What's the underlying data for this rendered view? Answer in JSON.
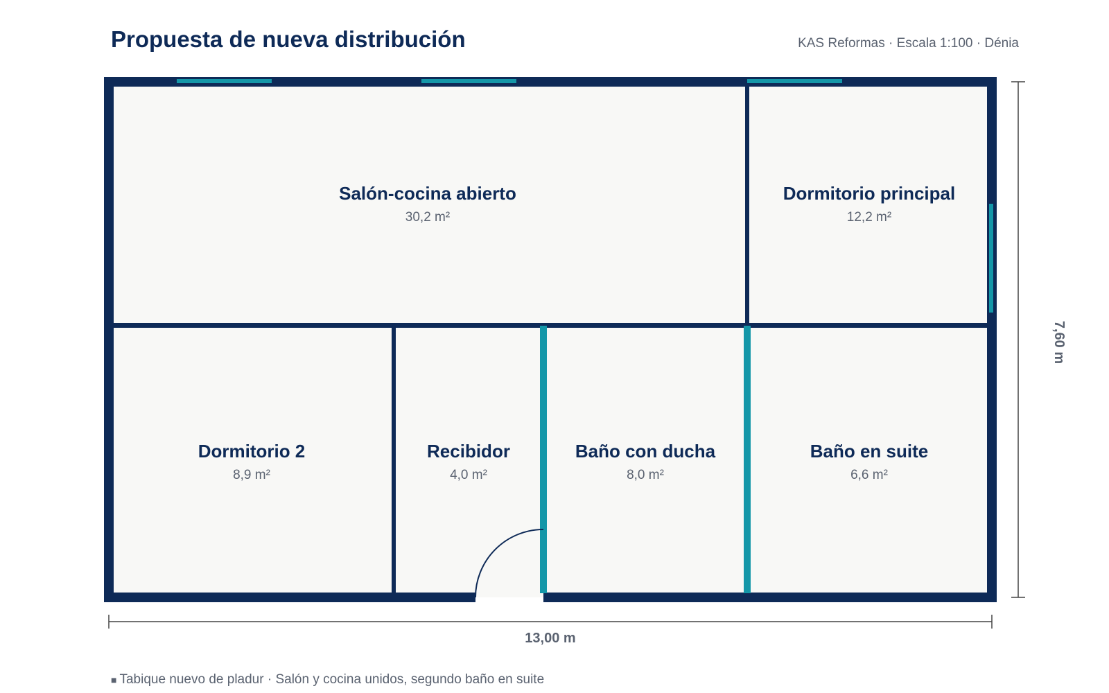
{
  "header": {
    "title": "Propuesta de nueva distribución",
    "subtitle": "KAS Reformas · Escala 1:100 · Dénia"
  },
  "rooms": [
    {
      "name": "Salón-cocina abierto",
      "area": "30,2 m²"
    },
    {
      "name": "Dormitorio principal",
      "area": "12,2 m²"
    },
    {
      "name": "Dormitorio 2",
      "area": "8,9 m²"
    },
    {
      "name": "Recibidor",
      "area": "4,0 m²"
    },
    {
      "name": "Baño con ducha",
      "area": "8,0 m²"
    },
    {
      "name": "Baño en suite",
      "area": "6,6 m²"
    }
  ],
  "dimensions": {
    "width": "13,00 m",
    "height": "7,60 m"
  },
  "legend": {
    "marker": "■",
    "text": "Tabique nuevo de pladur · Salón y cocina unidos, segundo baño en suite"
  },
  "colors": {
    "wall": "#0e2a57",
    "new_partition": "#1497a8",
    "floor": "#f8f8f6",
    "text_muted": "#5a6270"
  }
}
